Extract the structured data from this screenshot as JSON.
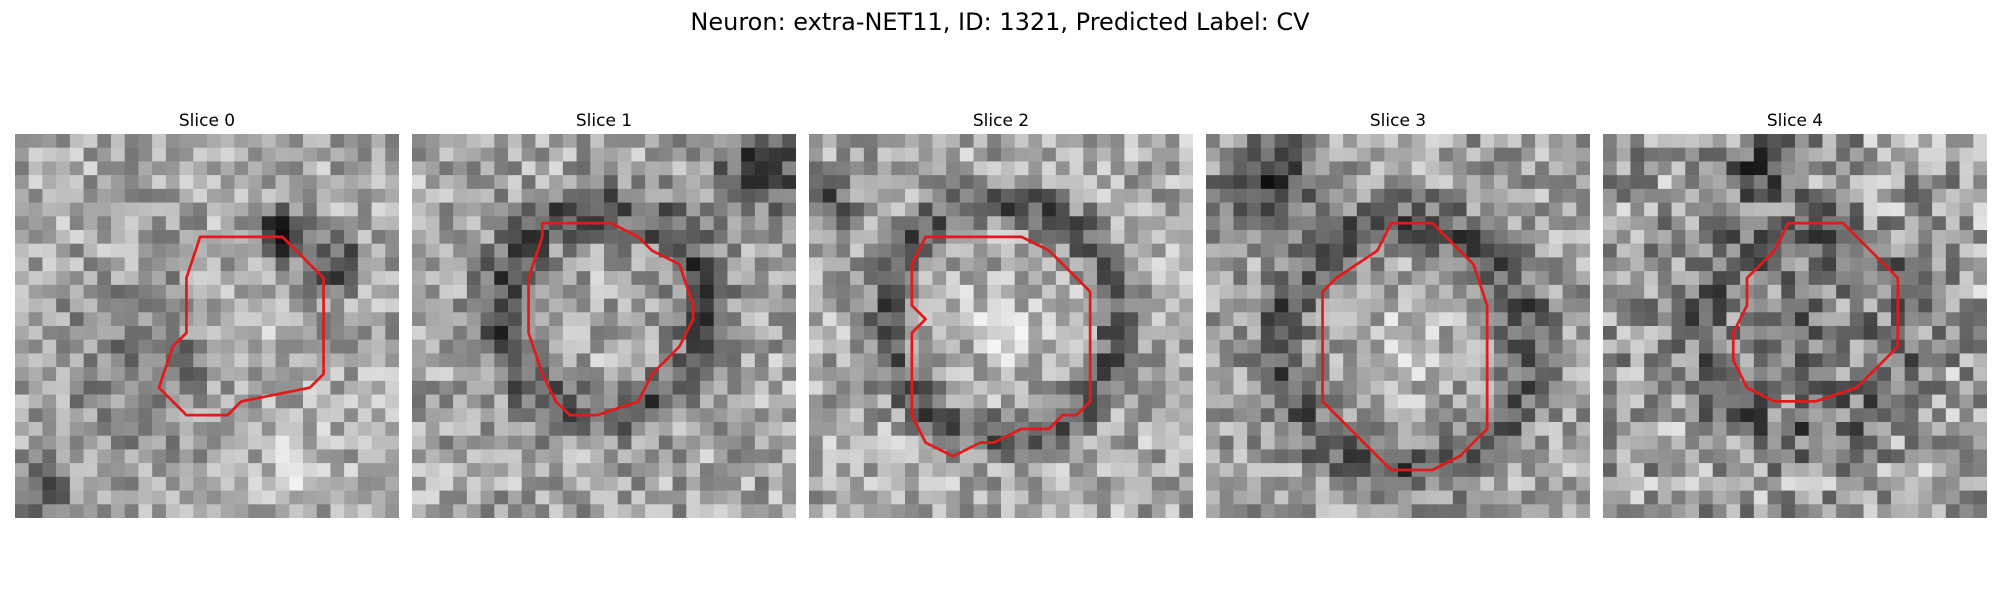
{
  "figure": {
    "title": "Neuron: extra-NET11, ID: 1321, Predicted Label: CV",
    "contour_color": "#e31a1c"
  },
  "panels": [
    {
      "title": "Slice 0",
      "seed": 11,
      "base": 168,
      "noise": 52,
      "blobs": [
        {
          "x": 19,
          "y": 7,
          "r": 1.8,
          "d": -150
        },
        {
          "x": 23,
          "y": 9,
          "r": 1.8,
          "d": -110
        },
        {
          "x": 9,
          "y": 16,
          "r": 5.5,
          "d": -55
        },
        {
          "x": 1,
          "y": 26,
          "r": 3,
          "d": -70
        },
        {
          "x": 16,
          "y": 15,
          "r": 3.5,
          "d": 20
        },
        {
          "x": 20,
          "y": 24,
          "r": 2.5,
          "d": 40
        }
      ],
      "ring": null,
      "contour": [
        [
          13.5,
          7.5
        ],
        [
          19.5,
          7.5
        ],
        [
          22.5,
          10.5
        ],
        [
          22.5,
          17.5
        ],
        [
          21.5,
          18.5
        ],
        [
          16.5,
          19.5
        ],
        [
          15.5,
          20.5
        ],
        [
          12.5,
          20.5
        ],
        [
          11.5,
          19.5
        ],
        [
          10.5,
          18.5
        ],
        [
          11.5,
          15.5
        ],
        [
          12.5,
          14.5
        ],
        [
          12.5,
          10.5
        ]
      ]
    },
    {
      "title": "Slice 1",
      "seed": 23,
      "base": 165,
      "noise": 55,
      "blobs": [
        {
          "x": 25,
          "y": 2,
          "r": 3.5,
          "d": -100
        },
        {
          "x": 14,
          "y": 18,
          "r": 3,
          "d": 15
        }
      ],
      "ring": {
        "cx": 13.5,
        "cy": 12.5,
        "r": 7.5,
        "w": 1.8,
        "d": -85
      },
      "contour": [
        [
          9.5,
          6.5
        ],
        [
          14.5,
          6.5
        ],
        [
          16.5,
          7.5
        ],
        [
          17.5,
          8.5
        ],
        [
          19.5,
          9.5
        ],
        [
          20.5,
          12.5
        ],
        [
          20.5,
          13.5
        ],
        [
          19.5,
          15.5
        ],
        [
          17.5,
          17.5
        ],
        [
          16.5,
          19.5
        ],
        [
          13.5,
          20.5
        ],
        [
          11.5,
          20.5
        ],
        [
          10.5,
          19.5
        ],
        [
          9.5,
          17.5
        ],
        [
          8.5,
          14.5
        ],
        [
          8.5,
          10.5
        ],
        [
          9.5,
          7.5
        ]
      ]
    },
    {
      "title": "Slice 2",
      "seed": 37,
      "base": 170,
      "noise": 55,
      "blobs": [
        {
          "x": 1,
          "y": 4,
          "r": 2,
          "d": -90
        },
        {
          "x": 14,
          "y": 14,
          "r": 4,
          "d": 25
        }
      ],
      "ring": {
        "cx": 13.5,
        "cy": 13,
        "r": 8.5,
        "w": 1.6,
        "d": -80
      },
      "contour": [
        [
          8.5,
          7.5
        ],
        [
          15.5,
          7.5
        ],
        [
          17.5,
          8.5
        ],
        [
          20.5,
          11.5
        ],
        [
          20.5,
          19.5
        ],
        [
          19.5,
          20.5
        ],
        [
          18.5,
          20.5
        ],
        [
          17.5,
          21.5
        ],
        [
          15.5,
          21.5
        ],
        [
          13.5,
          22.5
        ],
        [
          12.5,
          22.5
        ],
        [
          10.5,
          23.5
        ],
        [
          8.5,
          22.5
        ],
        [
          7.5,
          20.5
        ],
        [
          7.5,
          14.5
        ],
        [
          8.5,
          13.5
        ],
        [
          7.5,
          12.5
        ],
        [
          7.5,
          9.5
        ]
      ]
    },
    {
      "title": "Slice 3",
      "seed": 41,
      "base": 162,
      "noise": 55,
      "blobs": [
        {
          "x": 4,
          "y": 3,
          "r": 3.2,
          "d": -120
        },
        {
          "x": 14,
          "y": 15,
          "r": 4.5,
          "d": 25
        }
      ],
      "ring": {
        "cx": 14,
        "cy": 15,
        "r": 9,
        "w": 2,
        "d": -75
      },
      "contour": [
        [
          13.5,
          6.5
        ],
        [
          16.5,
          6.5
        ],
        [
          18.5,
          8.5
        ],
        [
          19.5,
          9.5
        ],
        [
          20.5,
          12.5
        ],
        [
          20.5,
          21.5
        ],
        [
          19.5,
          22.5
        ],
        [
          18.5,
          23.5
        ],
        [
          16.5,
          24.5
        ],
        [
          13.5,
          24.5
        ],
        [
          11.5,
          22.5
        ],
        [
          9.5,
          20.5
        ],
        [
          8.5,
          19.5
        ],
        [
          8.5,
          11.5
        ],
        [
          9.5,
          10.5
        ],
        [
          12.5,
          8.5
        ]
      ]
    },
    {
      "title": "Slice 4",
      "seed": 59,
      "base": 160,
      "noise": 70,
      "blobs": [
        {
          "x": 11,
          "y": 2,
          "r": 2.2,
          "d": -110
        },
        {
          "x": 14,
          "y": 14,
          "r": 5,
          "d": -45
        }
      ],
      "ring": {
        "cx": 14,
        "cy": 14,
        "r": 7.5,
        "w": 2,
        "d": -50
      },
      "contour": [
        [
          13.5,
          6.5
        ],
        [
          17.5,
          6.5
        ],
        [
          19.5,
          8.5
        ],
        [
          21.5,
          10.5
        ],
        [
          21.5,
          15.5
        ],
        [
          20.5,
          16.5
        ],
        [
          19.5,
          17.5
        ],
        [
          18.5,
          18.5
        ],
        [
          15.5,
          19.5
        ],
        [
          12.5,
          19.5
        ],
        [
          10.5,
          18.5
        ],
        [
          9.5,
          16.5
        ],
        [
          9.5,
          14.5
        ],
        [
          10.5,
          12.5
        ],
        [
          10.5,
          10.5
        ],
        [
          12.5,
          8.5
        ]
      ]
    }
  ]
}
